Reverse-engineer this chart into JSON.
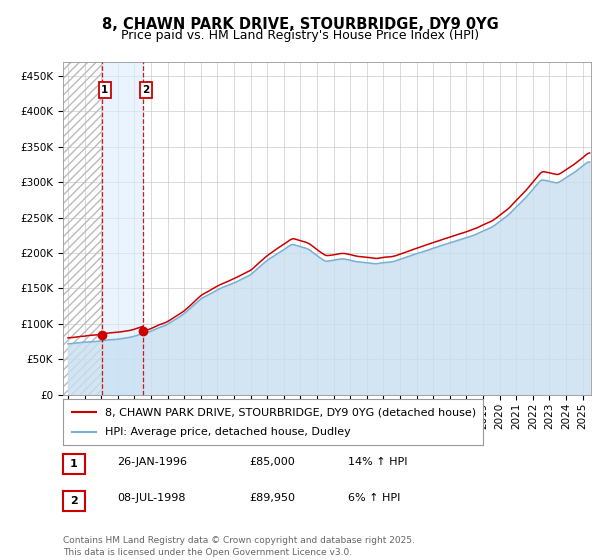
{
  "title_line1": "8, CHAWN PARK DRIVE, STOURBRIDGE, DY9 0YG",
  "title_line2": "Price paid vs. HM Land Registry's House Price Index (HPI)",
  "ylabel_ticks": [
    "£0",
    "£50K",
    "£100K",
    "£150K",
    "£200K",
    "£250K",
    "£300K",
    "£350K",
    "£400K",
    "£450K"
  ],
  "ylabel_values": [
    0,
    50000,
    100000,
    150000,
    200000,
    250000,
    300000,
    350000,
    400000,
    450000
  ],
  "ylim": [
    0,
    470000
  ],
  "xlim_start": 1993.7,
  "xlim_end": 2025.5,
  "sale1_x": 1996.07,
  "sale1_y": 85000,
  "sale1_label": "1",
  "sale2_x": 1998.54,
  "sale2_y": 89950,
  "sale2_label": "2",
  "shade_x1": 1996.07,
  "shade_x2": 1998.54,
  "price_line_color": "#cc0000",
  "hpi_line_color": "#7ab0d4",
  "hpi_fill_color": "#c8dff0",
  "hatch_color": "#bbbbbb",
  "background_color": "#ffffff",
  "grid_color": "#cccccc",
  "legend_price_label": "8, CHAWN PARK DRIVE, STOURBRIDGE, DY9 0YG (detached house)",
  "legend_hpi_label": "HPI: Average price, detached house, Dudley",
  "table_rows": [
    {
      "num": "1",
      "date": "26-JAN-1996",
      "price": "£85,000",
      "hpi": "14% ↑ HPI"
    },
    {
      "num": "2",
      "date": "08-JUL-1998",
      "price": "£89,950",
      "hpi": "6% ↑ HPI"
    }
  ],
  "footer": "Contains HM Land Registry data © Crown copyright and database right 2025.\nThis data is licensed under the Open Government Licence v3.0.",
  "title_fontsize": 10.5,
  "subtitle_fontsize": 9,
  "tick_fontsize": 7.5,
  "legend_fontsize": 8,
  "table_fontsize": 8,
  "footer_fontsize": 6.5
}
